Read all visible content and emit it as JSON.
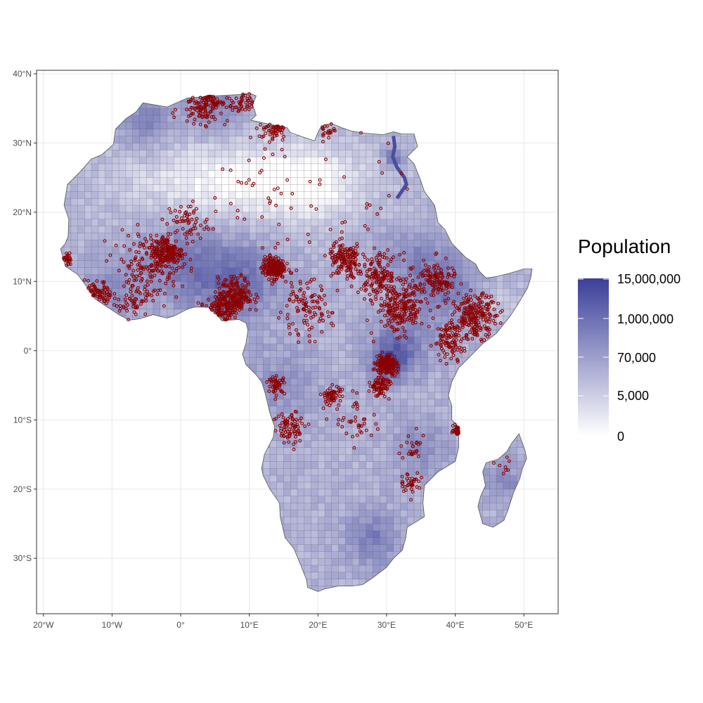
{
  "map": {
    "type": "choropleth-grid-with-points",
    "region": "Africa",
    "x_axis": {
      "range": [
        -21,
        55
      ],
      "ticks": [
        {
          "value": -20,
          "label": "20°W"
        },
        {
          "value": -10,
          "label": "10°W"
        },
        {
          "value": 0,
          "label": "0°"
        },
        {
          "value": 10,
          "label": "10°E"
        },
        {
          "value": 20,
          "label": "20°E"
        },
        {
          "value": 30,
          "label": "30°E"
        },
        {
          "value": 40,
          "label": "40°E"
        },
        {
          "value": 50,
          "label": "50°E"
        }
      ]
    },
    "y_axis": {
      "range": [
        -38,
        40.5
      ],
      "ticks": [
        {
          "value": 40,
          "label": "40°N"
        },
        {
          "value": 30,
          "label": "30°N"
        },
        {
          "value": 20,
          "label": "20°N"
        },
        {
          "value": 10,
          "label": "10°N"
        },
        {
          "value": 0,
          "label": "0°"
        },
        {
          "value": -10,
          "label": "10°S"
        },
        {
          "value": -20,
          "label": "20°S"
        },
        {
          "value": -30,
          "label": "30°S"
        }
      ]
    },
    "grid": true,
    "colors": {
      "low": "#ffffff",
      "high": "#3b3f99",
      "points": "#8b0000",
      "outline": "#555555",
      "panel_border": "#333333",
      "gridline": "#ebebeb"
    },
    "africa_outline_lonlat": [
      [
        -17.0,
        21.0
      ],
      [
        -16.5,
        24.0
      ],
      [
        -14.5,
        26.0
      ],
      [
        -13.0,
        27.7
      ],
      [
        -11.5,
        28.3
      ],
      [
        -9.8,
        29.8
      ],
      [
        -9.5,
        32.0
      ],
      [
        -8.0,
        33.5
      ],
      [
        -6.5,
        34.5
      ],
      [
        -5.5,
        35.8
      ],
      [
        -2.0,
        35.2
      ],
      [
        1.0,
        36.5
      ],
      [
        5.0,
        36.8
      ],
      [
        8.5,
        37.0
      ],
      [
        10.0,
        37.2
      ],
      [
        11.0,
        36.8
      ],
      [
        10.5,
        35.5
      ],
      [
        11.0,
        34.0
      ],
      [
        10.2,
        33.3
      ],
      [
        12.5,
        32.8
      ],
      [
        15.5,
        32.2
      ],
      [
        16.0,
        31.5
      ],
      [
        18.0,
        30.8
      ],
      [
        19.5,
        30.3
      ],
      [
        20.0,
        31.5
      ],
      [
        20.5,
        32.5
      ],
      [
        22.0,
        32.8
      ],
      [
        23.5,
        32.2
      ],
      [
        25.0,
        31.7
      ],
      [
        27.0,
        31.4
      ],
      [
        29.5,
        31.2
      ],
      [
        31.0,
        31.6
      ],
      [
        32.3,
        31.3
      ],
      [
        34.0,
        31.3
      ],
      [
        34.5,
        29.5
      ],
      [
        33.0,
        28.0
      ],
      [
        34.0,
        27.0
      ],
      [
        35.0,
        24.5
      ],
      [
        35.5,
        23.0
      ],
      [
        37.0,
        21.0
      ],
      [
        37.5,
        18.5
      ],
      [
        38.5,
        17.5
      ],
      [
        39.5,
        15.5
      ],
      [
        41.5,
        13.5
      ],
      [
        43.0,
        12.5
      ],
      [
        43.5,
        11.5
      ],
      [
        44.5,
        10.5
      ],
      [
        46.0,
        10.7
      ],
      [
        48.0,
        11.2
      ],
      [
        50.0,
        11.8
      ],
      [
        51.2,
        11.8
      ],
      [
        51.0,
        10.5
      ],
      [
        50.5,
        9.0
      ],
      [
        49.0,
        6.5
      ],
      [
        48.0,
        5.0
      ],
      [
        46.0,
        2.5
      ],
      [
        44.0,
        1.0
      ],
      [
        42.0,
        -1.0
      ],
      [
        40.5,
        -2.5
      ],
      [
        39.5,
        -4.5
      ],
      [
        39.0,
        -6.5
      ],
      [
        39.5,
        -8.0
      ],
      [
        39.5,
        -10.0
      ],
      [
        40.5,
        -11.0
      ],
      [
        40.5,
        -14.0
      ],
      [
        40.0,
        -16.0
      ],
      [
        37.5,
        -17.5
      ],
      [
        35.5,
        -19.5
      ],
      [
        35.3,
        -22.0
      ],
      [
        35.5,
        -24.0
      ],
      [
        33.0,
        -25.5
      ],
      [
        32.8,
        -27.0
      ],
      [
        32.3,
        -28.8
      ],
      [
        31.0,
        -30.0
      ],
      [
        30.0,
        -31.3
      ],
      [
        28.0,
        -32.8
      ],
      [
        26.5,
        -33.8
      ],
      [
        25.0,
        -34.0
      ],
      [
        23.0,
        -34.0
      ],
      [
        21.0,
        -34.4
      ],
      [
        20.0,
        -34.8
      ],
      [
        18.5,
        -34.2
      ],
      [
        18.3,
        -33.0
      ],
      [
        17.5,
        -31.0
      ],
      [
        16.5,
        -28.6
      ],
      [
        15.2,
        -27.0
      ],
      [
        14.5,
        -24.0
      ],
      [
        14.4,
        -22.0
      ],
      [
        13.0,
        -20.0
      ],
      [
        12.0,
        -18.0
      ],
      [
        11.8,
        -17.0
      ],
      [
        12.2,
        -15.0
      ],
      [
        13.5,
        -12.5
      ],
      [
        13.7,
        -11.0
      ],
      [
        13.0,
        -9.0
      ],
      [
        12.3,
        -6.1
      ],
      [
        11.8,
        -4.5
      ],
      [
        11.0,
        -3.5
      ],
      [
        9.5,
        -2.0
      ],
      [
        9.0,
        -0.5
      ],
      [
        9.5,
        1.0
      ],
      [
        9.8,
        3.0
      ],
      [
        9.5,
        4.0
      ],
      [
        8.5,
        4.5
      ],
      [
        7.0,
        4.4
      ],
      [
        6.0,
        4.3
      ],
      [
        5.0,
        5.5
      ],
      [
        4.0,
        6.3
      ],
      [
        2.0,
        6.3
      ],
      [
        1.0,
        6.0
      ],
      [
        -1.0,
        5.0
      ],
      [
        -2.0,
        4.7
      ],
      [
        -4.0,
        5.2
      ],
      [
        -6.0,
        4.6
      ],
      [
        -7.5,
        4.4
      ],
      [
        -9.0,
        5.2
      ],
      [
        -11.0,
        6.5
      ],
      [
        -12.5,
        7.5
      ],
      [
        -13.5,
        9.0
      ],
      [
        -15.0,
        11.0
      ],
      [
        -16.8,
        12.2
      ],
      [
        -17.5,
        14.7
      ],
      [
        -16.8,
        15.5
      ],
      [
        -16.4,
        16.5
      ],
      [
        -16.3,
        19.0
      ],
      [
        -17.0,
        21.0
      ]
    ],
    "madagascar_outline_lonlat": [
      [
        49.3,
        -12.0
      ],
      [
        50.2,
        -14.5
      ],
      [
        50.4,
        -15.6
      ],
      [
        49.8,
        -17.0
      ],
      [
        49.4,
        -18.5
      ],
      [
        48.5,
        -20.5
      ],
      [
        47.7,
        -23.0
      ],
      [
        47.1,
        -24.5
      ],
      [
        45.5,
        -25.5
      ],
      [
        44.0,
        -25.0
      ],
      [
        43.3,
        -22.5
      ],
      [
        43.7,
        -21.0
      ],
      [
        44.4,
        -19.5
      ],
      [
        44.0,
        -17.5
      ],
      [
        44.5,
        -16.2
      ],
      [
        46.2,
        -15.7
      ],
      [
        47.5,
        -14.6
      ],
      [
        48.2,
        -13.4
      ],
      [
        49.3,
        -12.0
      ]
    ],
    "nile_lonlat": [
      [
        31.0,
        31.0
      ],
      [
        31.2,
        29.5
      ],
      [
        30.9,
        28.0
      ],
      [
        31.5,
        26.5
      ],
      [
        32.6,
        25.0
      ],
      [
        32.9,
        24.0
      ],
      [
        31.5,
        22.0
      ]
    ],
    "population_hotspots": [
      {
        "lon": 8.0,
        "lat": 10.0,
        "radius": 6,
        "weight": 1.0
      },
      {
        "lon": 0.0,
        "lat": 13.0,
        "radius": 6,
        "weight": 0.7
      },
      {
        "lon": 38.0,
        "lat": 9.0,
        "radius": 5,
        "weight": 0.9
      },
      {
        "lon": 32.0,
        "lat": 0.5,
        "radius": 4,
        "weight": 1.0
      },
      {
        "lon": 30.0,
        "lat": -2.0,
        "radius": 2.5,
        "weight": 1.0
      },
      {
        "lon": 28.0,
        "lat": -27.0,
        "radius": 4,
        "weight": 0.8
      },
      {
        "lon": 31.0,
        "lat": 28.0,
        "radius": 1.5,
        "weight": 1.0
      },
      {
        "lon": 5.0,
        "lat": 35.0,
        "radius": 4,
        "weight": 0.7
      },
      {
        "lon": -5.0,
        "lat": 33.0,
        "radius": 4,
        "weight": 0.7
      },
      {
        "lon": -10.0,
        "lat": 9.0,
        "radius": 4,
        "weight": 0.6
      },
      {
        "lon": 35.0,
        "lat": -14.0,
        "radius": 4,
        "weight": 0.6
      },
      {
        "lon": 47.0,
        "lat": -19.0,
        "radius": 3,
        "weight": 0.6
      },
      {
        "lon": 33.0,
        "lat": 14.0,
        "radius": 4,
        "weight": 0.5
      },
      {
        "lon": 15.0,
        "lat": -5.0,
        "radius": 5,
        "weight": 0.5
      }
    ],
    "event_clusters": [
      {
        "lon": 3.5,
        "lat": 36.4,
        "spread": 3.5,
        "count": 130
      },
      {
        "lon": 9.0,
        "lat": 35.5,
        "spread": 1.5,
        "count": 40
      },
      {
        "lon": 13.5,
        "lat": 32.3,
        "spread": 2.0,
        "count": 50
      },
      {
        "lon": 21.0,
        "lat": 32.0,
        "spread": 1.5,
        "count": 20
      },
      {
        "lon": -2.0,
        "lat": 14.2,
        "spread": 2.5,
        "count": 200
      },
      {
        "lon": -5.0,
        "lat": 12.0,
        "spread": 5.0,
        "count": 150
      },
      {
        "lon": 1.0,
        "lat": 18.5,
        "spread": 3.0,
        "count": 60
      },
      {
        "lon": 13.5,
        "lat": 12.0,
        "spread": 1.6,
        "count": 220
      },
      {
        "lon": 8.0,
        "lat": 8.0,
        "spread": 2.5,
        "count": 220
      },
      {
        "lon": 5.5,
        "lat": 6.0,
        "spread": 2.0,
        "count": 100
      },
      {
        "lon": -12.0,
        "lat": 8.0,
        "spread": 2.0,
        "count": 70
      },
      {
        "lon": -7.0,
        "lat": 7.0,
        "spread": 2.5,
        "count": 40
      },
      {
        "lon": -16.5,
        "lat": 13.0,
        "spread": 0.8,
        "count": 30
      },
      {
        "lon": 24.0,
        "lat": 13.0,
        "spread": 2.5,
        "count": 150
      },
      {
        "lon": 29.0,
        "lat": 11.0,
        "spread": 3.0,
        "count": 150
      },
      {
        "lon": 32.0,
        "lat": 6.0,
        "spread": 3.5,
        "count": 220
      },
      {
        "lon": 37.0,
        "lat": 10.0,
        "spread": 3.0,
        "count": 140
      },
      {
        "lon": 43.0,
        "lat": 5.0,
        "spread": 3.0,
        "count": 220
      },
      {
        "lon": 39.5,
        "lat": 1.5,
        "spread": 2.5,
        "count": 100
      },
      {
        "lon": 30.0,
        "lat": -2.0,
        "spread": 1.5,
        "count": 180
      },
      {
        "lon": 29.0,
        "lat": -5.0,
        "spread": 1.5,
        "count": 80
      },
      {
        "lon": 18.0,
        "lat": 6.0,
        "spread": 4.0,
        "count": 110
      },
      {
        "lon": 22.0,
        "lat": -6.5,
        "spread": 1.5,
        "count": 60
      },
      {
        "lon": 14.0,
        "lat": -5.0,
        "spread": 1.2,
        "count": 50
      },
      {
        "lon": 16.0,
        "lat": -11.0,
        "spread": 2.5,
        "count": 80
      },
      {
        "lon": 40.3,
        "lat": -11.5,
        "spread": 0.6,
        "count": 35
      },
      {
        "lon": 33.5,
        "lat": -19.0,
        "spread": 1.5,
        "count": 35
      },
      {
        "lon": 34.0,
        "lat": -14.0,
        "spread": 2.0,
        "count": 25
      },
      {
        "lon": 26.0,
        "lat": -10.0,
        "spread": 3.5,
        "count": 40
      },
      {
        "lon": 12.0,
        "lat": 22.0,
        "spread": 9.0,
        "count": 40
      },
      {
        "lon": 27.0,
        "lat": 22.0,
        "spread": 9.0,
        "count": 25
      },
      {
        "lon": 47.0,
        "lat": -17.0,
        "spread": 2.0,
        "count": 8
      }
    ]
  },
  "legend": {
    "title": "Population",
    "gradient_low": "#ffffff",
    "gradient_high": "#3b3f99",
    "labels": [
      "15,000,000",
      "1,000,000",
      "70,000",
      "5,000",
      "0"
    ]
  }
}
